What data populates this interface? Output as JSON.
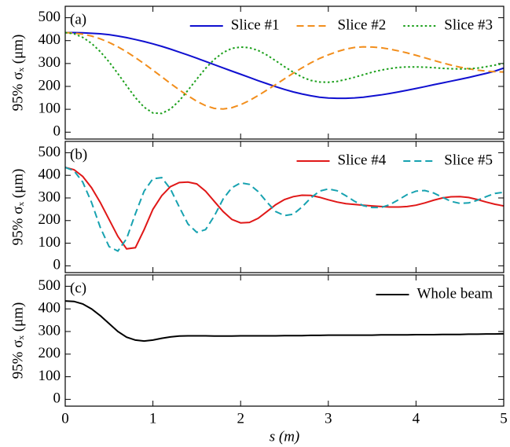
{
  "chart_data": [
    {
      "type": "line",
      "panel_label": "(a)",
      "ylabel": "95%  σₓ (μm)",
      "xlim": [
        0,
        5
      ],
      "ylim": [
        -30,
        550
      ],
      "xticks": [
        0,
        1,
        2,
        3,
        4,
        5
      ],
      "yticks": [
        0,
        100,
        200,
        300,
        400,
        500
      ],
      "legend": "upper right",
      "x": [
        0,
        0.1,
        0.2,
        0.3,
        0.4,
        0.5,
        0.6,
        0.7,
        0.8,
        0.9,
        1,
        1.1,
        1.2,
        1.3,
        1.4,
        1.5,
        1.6,
        1.7,
        1.8,
        1.9,
        2,
        2.1,
        2.2,
        2.3,
        2.4,
        2.5,
        2.6,
        2.7,
        2.8,
        2.9,
        3,
        3.1,
        3.2,
        3.3,
        3.4,
        3.5,
        3.6,
        3.7,
        3.8,
        3.9,
        4,
        4.1,
        4.2,
        4.3,
        4.4,
        4.5,
        4.6,
        4.7,
        4.8,
        4.9,
        5
      ],
      "series": [
        {
          "name": "Slice #1",
          "color": "#1010d0",
          "dash": "solid",
          "values": [
            435,
            435,
            434,
            432,
            430,
            426,
            420,
            413,
            405,
            396,
            386,
            375,
            363,
            350,
            337,
            323,
            309,
            295,
            281,
            267,
            253,
            239,
            225,
            212,
            199,
            187,
            176,
            167,
            159,
            153,
            149,
            148,
            148,
            150,
            153,
            158,
            163,
            169,
            176,
            183,
            191,
            199,
            207,
            215,
            223,
            231,
            239,
            248,
            257,
            267,
            280
          ]
        },
        {
          "name": "Slice #2",
          "color": "#f28e1c",
          "dash": "dashed",
          "values": [
            435,
            433,
            428,
            420,
            408,
            392,
            373,
            351,
            326,
            299,
            271,
            242,
            213,
            185,
            159,
            135,
            116,
            104,
            101,
            107,
            120,
            138,
            160,
            184,
            208,
            233,
            258,
            281,
            303,
            322,
            338,
            352,
            363,
            370,
            373,
            372,
            369,
            363,
            355,
            346,
            336,
            325,
            314,
            303,
            293,
            284,
            277,
            271,
            267,
            264,
            263
          ]
        },
        {
          "name": "Slice #3",
          "color": "#1ca01c",
          "dash": "dotted",
          "values": [
            435,
            430,
            414,
            388,
            352,
            307,
            256,
            203,
            151,
            109,
            84,
            82,
            101,
            137,
            183,
            232,
            279,
            318,
            348,
            366,
            372,
            369,
            357,
            337,
            312,
            286,
            262,
            241,
            226,
            219,
            218,
            222,
            230,
            240,
            251,
            262,
            271,
            278,
            283,
            285,
            285,
            284,
            282,
            279,
            277,
            276,
            277,
            280,
            286,
            293,
            300
          ]
        }
      ]
    },
    {
      "type": "line",
      "panel_label": "(b)",
      "ylabel": "95%  σₓ (μm)",
      "xlim": [
        0,
        5
      ],
      "ylim": [
        -30,
        550
      ],
      "xticks": [
        0,
        1,
        2,
        3,
        4,
        5
      ],
      "yticks": [
        0,
        100,
        200,
        300,
        400,
        500
      ],
      "legend": "upper right",
      "x": [
        0,
        0.1,
        0.2,
        0.3,
        0.4,
        0.5,
        0.6,
        0.7,
        0.8,
        0.9,
        1,
        1.1,
        1.2,
        1.3,
        1.4,
        1.5,
        1.6,
        1.7,
        1.8,
        1.9,
        2,
        2.1,
        2.2,
        2.3,
        2.4,
        2.5,
        2.6,
        2.7,
        2.8,
        2.9,
        3,
        3.1,
        3.2,
        3.3,
        3.4,
        3.5,
        3.6,
        3.7,
        3.8,
        3.9,
        4,
        4.1,
        4.2,
        4.3,
        4.4,
        4.5,
        4.6,
        4.7,
        4.8,
        4.9,
        5
      ],
      "series": [
        {
          "name": "Slice #4",
          "color": "#e01818",
          "dash": "solid",
          "values": [
            435,
            425,
            395,
            345,
            280,
            205,
            130,
            75,
            80,
            160,
            250,
            310,
            350,
            368,
            370,
            362,
            330,
            285,
            240,
            205,
            190,
            192,
            210,
            240,
            270,
            293,
            306,
            312,
            311,
            303,
            292,
            282,
            275,
            271,
            268,
            265,
            262,
            260,
            260,
            262,
            268,
            278,
            290,
            300,
            305,
            306,
            302,
            293,
            282,
            272,
            265
          ]
        },
        {
          "name": "Slice #5",
          "color": "#17a2b0",
          "dash": "dashed",
          "values": [
            435,
            420,
            370,
            280,
            170,
            85,
            65,
            120,
            230,
            330,
            385,
            390,
            340,
            260,
            185,
            148,
            160,
            220,
            295,
            345,
            367,
            360,
            328,
            282,
            240,
            222,
            228,
            260,
            300,
            330,
            340,
            332,
            310,
            285,
            266,
            258,
            258,
            270,
            292,
            315,
            330,
            333,
            322,
            303,
            285,
            276,
            278,
            290,
            306,
            320,
            325
          ]
        }
      ]
    },
    {
      "type": "line",
      "panel_label": "(c)",
      "ylabel": "95%  σₓ (μm)",
      "xlabel": "s (m)",
      "xlim": [
        0,
        5
      ],
      "ylim": [
        -30,
        550
      ],
      "xticks": [
        0,
        1,
        2,
        3,
        4,
        5
      ],
      "yticks": [
        0,
        100,
        200,
        300,
        400,
        500
      ],
      "legend": "upper right",
      "x": [
        0,
        0.1,
        0.2,
        0.3,
        0.4,
        0.5,
        0.6,
        0.7,
        0.8,
        0.9,
        1,
        1.1,
        1.2,
        1.3,
        1.4,
        1.5,
        1.6,
        1.7,
        1.8,
        1.9,
        2,
        2.1,
        2.2,
        2.3,
        2.4,
        2.5,
        2.6,
        2.7,
        2.8,
        2.9,
        3,
        3.1,
        3.2,
        3.3,
        3.4,
        3.5,
        3.6,
        3.7,
        3.8,
        3.9,
        4,
        4.1,
        4.2,
        4.3,
        4.4,
        4.5,
        4.6,
        4.7,
        4.8,
        4.9,
        5
      ],
      "series": [
        {
          "name": "Whole beam",
          "color": "#000000",
          "dash": "solid",
          "values": [
            435,
            433,
            422,
            400,
            370,
            335,
            300,
            275,
            262,
            258,
            262,
            270,
            276,
            280,
            281,
            281,
            281,
            280,
            280,
            280,
            281,
            281,
            281,
            281,
            281,
            282,
            282,
            282,
            283,
            283,
            284,
            284,
            284,
            284,
            284,
            284,
            285,
            285,
            285,
            285,
            286,
            286,
            286,
            287,
            287,
            287,
            288,
            288,
            289,
            289,
            290
          ]
        }
      ]
    }
  ]
}
